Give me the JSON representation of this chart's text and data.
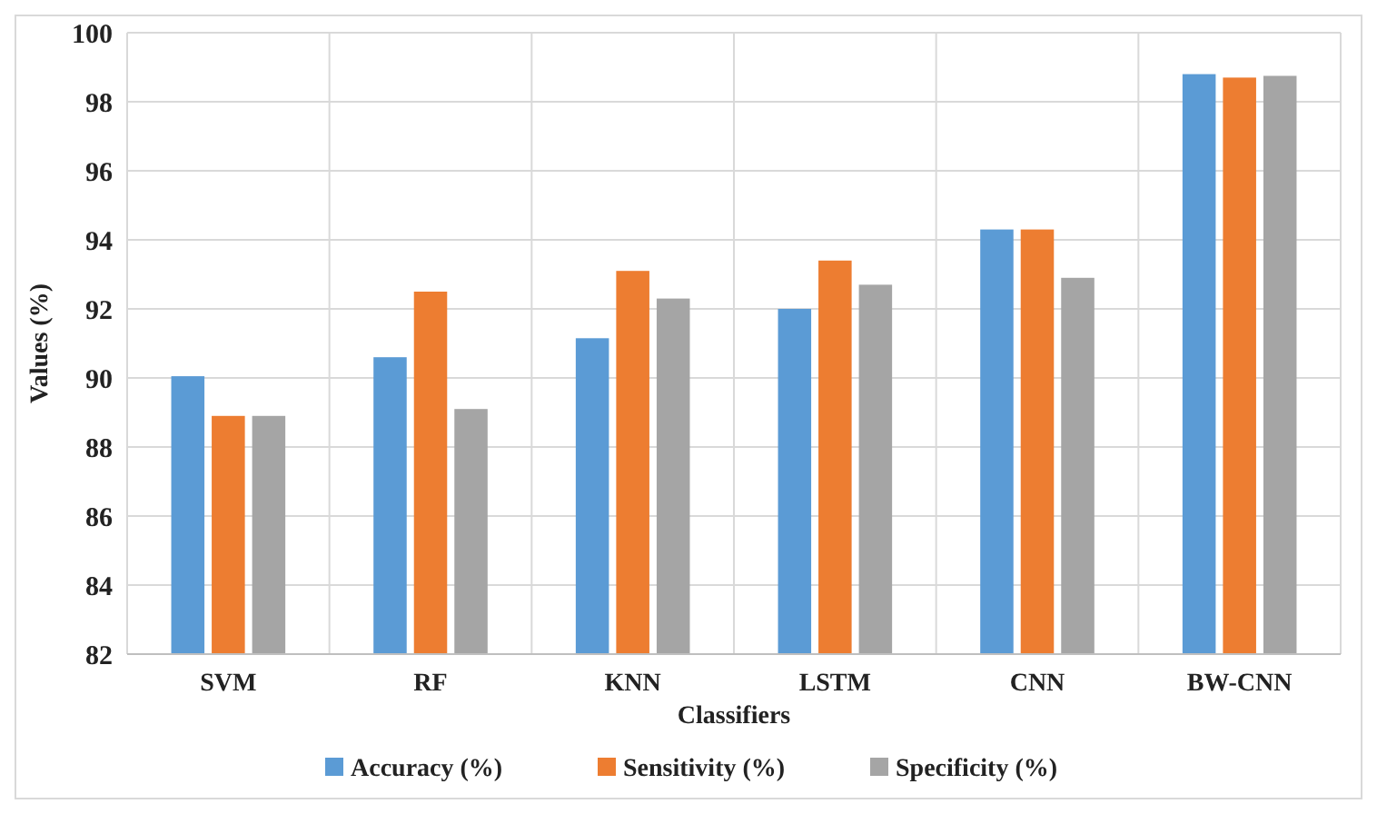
{
  "chart_data": {
    "type": "bar",
    "xlabel": "Classifiers",
    "ylabel": "Values (%)",
    "categories": [
      "SVM",
      "RF",
      "KNN",
      "LSTM",
      "CNN",
      "BW-CNN"
    ],
    "series": [
      {
        "name": "Accuracy (%)",
        "color": "#5b9bd5",
        "values": [
          90.05,
          90.6,
          91.15,
          92.0,
          94.3,
          98.8
        ]
      },
      {
        "name": "Sensitivity (%)",
        "color": "#ed7d31",
        "values": [
          88.9,
          92.5,
          93.1,
          93.4,
          94.3,
          98.7
        ]
      },
      {
        "name": "Specificity (%)",
        "color": "#a5a5a5",
        "values": [
          88.9,
          89.1,
          92.3,
          92.7,
          92.9,
          98.75
        ]
      }
    ],
    "ylim": [
      82,
      100
    ],
    "yticks": [
      82,
      84,
      86,
      88,
      90,
      92,
      94,
      96,
      98,
      100
    ],
    "grid": true,
    "legend": "bottom"
  }
}
